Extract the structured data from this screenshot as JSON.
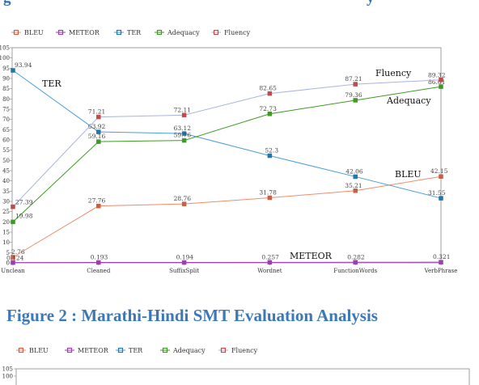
{
  "top_heading_fragment": "g",
  "top_heading_tail": "y",
  "figure_caption": "Figure 2 : Marathi-Hindi SMT Evaluation Analysis",
  "colors": {
    "BLEU": "#f08c6c",
    "METEOR": "#9b3fb0",
    "TER": "#4a9fd8",
    "Adequacy": "#3f9a24",
    "Fluency": "#a8b4e0",
    "Fluency_marker": "#c24a4a",
    "BLEU_marker": "#c95f45",
    "TER_marker": "#1f78a8"
  },
  "chart_data": [
    {
      "type": "line",
      "title": "",
      "xlabel": "",
      "ylabel": "",
      "ylim": [
        0,
        105
      ],
      "yticks": [
        0,
        5,
        10,
        15,
        20,
        25,
        30,
        35,
        40,
        45,
        50,
        55,
        60,
        65,
        70,
        75,
        80,
        85,
        90,
        95,
        100,
        105
      ],
      "grid": false,
      "legend_position": "top-left",
      "categories": [
        "Unclean",
        "Cleaned",
        "SuffixSplit",
        "Wordnet",
        "FunctionWords",
        "VerbPhrase"
      ],
      "series": [
        {
          "name": "BLEU",
          "values": [
            2.76,
            27.76,
            28.76,
            31.78,
            35.21,
            42.15
          ],
          "labels": [
            "2.76",
            "27.76",
            "28.76",
            "31.78",
            "35.21",
            "42.15"
          ]
        },
        {
          "name": "METEOR",
          "values": [
            0.124,
            0.193,
            0.194,
            0.257,
            0.282,
            0.321
          ],
          "labels": [
            "0.124",
            "0.193",
            "0.194",
            "0.257",
            "0.282",
            "0.321"
          ]
        },
        {
          "name": "TER",
          "values": [
            93.94,
            63.92,
            63.12,
            52.3,
            42.06,
            31.55
          ],
          "labels": [
            "93.94",
            "63.92",
            "63.12",
            "52.3",
            "42.06",
            "31.55"
          ]
        },
        {
          "name": "Adequacy",
          "values": [
            19.98,
            59.16,
            59.76,
            72.73,
            79.36,
            86.01
          ],
          "labels": [
            "19.98",
            "59.16",
            "59.76",
            "72.73",
            "79.36",
            "86.01"
          ]
        },
        {
          "name": "Fluency",
          "values": [
            27.39,
            71.21,
            72.11,
            82.65,
            87.21,
            89.32
          ],
          "labels": [
            "27.39",
            "71.21",
            "72.11",
            "82.65",
            "87.21",
            "89.32"
          ]
        }
      ],
      "annotations": [
        "TER",
        "Fluency",
        "Adequacy",
        "BLEU",
        "METEOR"
      ]
    },
    {
      "type": "line",
      "title": "",
      "legend_position": "top-left",
      "series_names": [
        "BLEU",
        "METEOR",
        "TER",
        "Adequacy",
        "Fluency"
      ],
      "visible_yticks": [
        105,
        100
      ],
      "partial": true
    }
  ]
}
